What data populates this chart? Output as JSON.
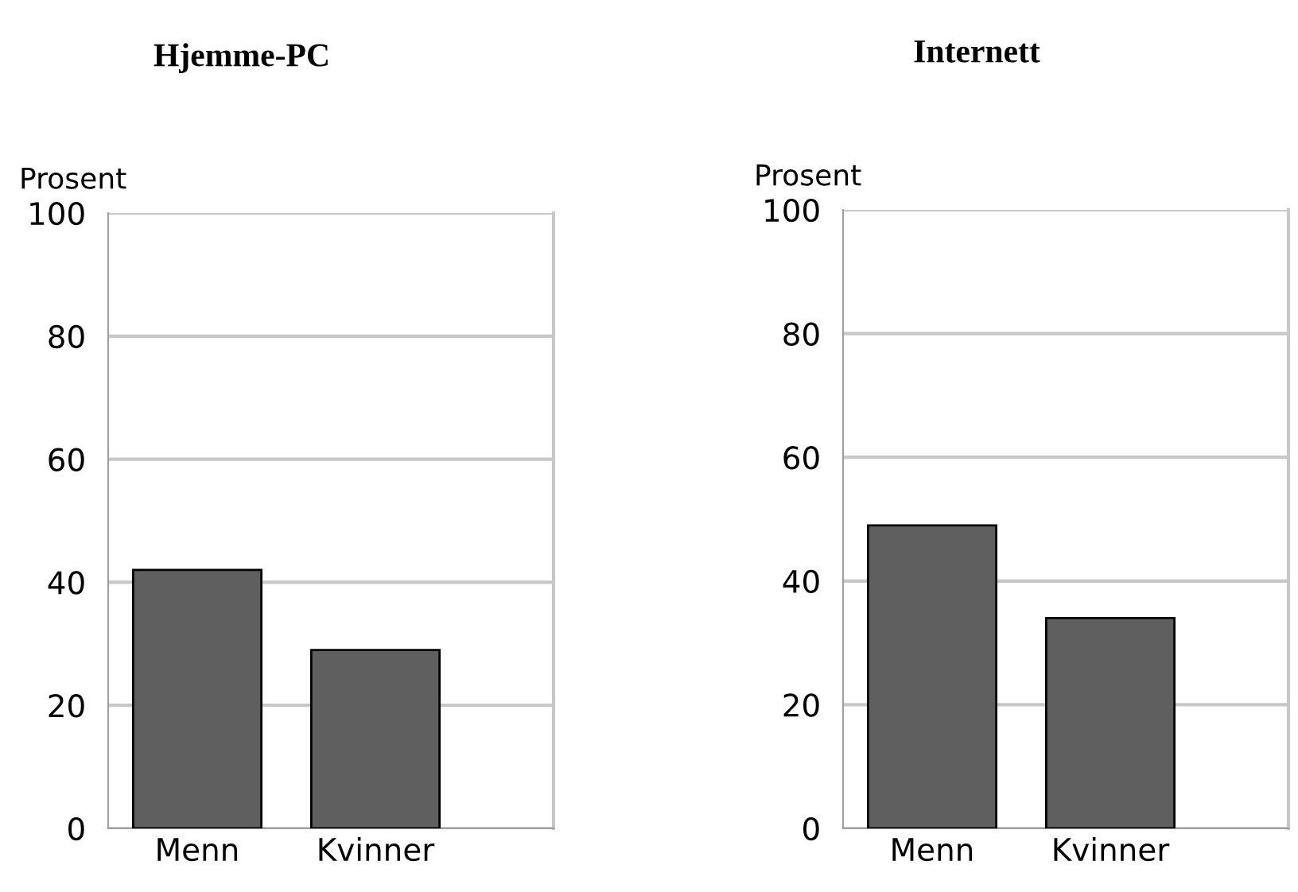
{
  "chart_data": [
    {
      "type": "bar",
      "title": "Hjemme-PC",
      "ylabel": "Prosent",
      "categories": [
        "Menn",
        "Kvinner"
      ],
      "values": [
        42,
        29
      ],
      "color": "#5f5f5f",
      "ylim": [
        0,
        100
      ],
      "yticks": [
        0,
        20,
        40,
        60,
        80,
        100
      ],
      "grid": "y"
    },
    {
      "type": "bar",
      "title": "Internett",
      "ylabel": "Prosent",
      "categories": [
        "Menn",
        "Kvinner"
      ],
      "values": [
        49,
        34
      ],
      "color": "#5f5f5f",
      "ylim": [
        0,
        100
      ],
      "yticks": [
        0,
        20,
        40,
        60,
        80,
        100
      ],
      "grid": "y"
    }
  ]
}
